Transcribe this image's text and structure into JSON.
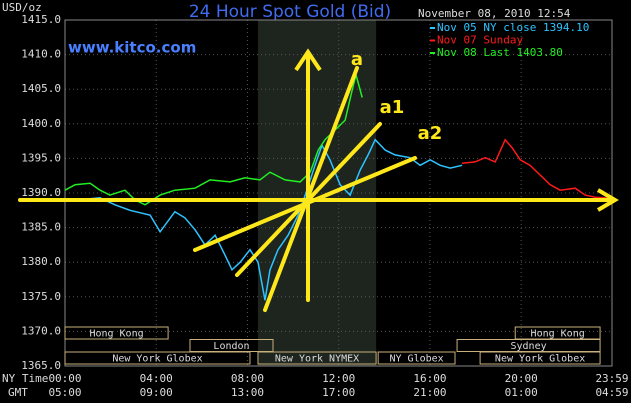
{
  "chart_data": {
    "type": "line",
    "title": "24 Hour Spot Gold (Bid)",
    "subtitle": "November 08, 2010 12:54",
    "source": "www.kitco.com",
    "y_label": "USD/oz",
    "x_label": "NY Time",
    "x2_label": "GMT",
    "xlim": [
      0,
      23.983
    ],
    "ylim": [
      1365,
      1415
    ],
    "xticks": [
      {
        "value": 0,
        "label": "00:00"
      },
      {
        "value": 4,
        "label": "04:00"
      },
      {
        "value": 8,
        "label": "08:00"
      },
      {
        "value": 12,
        "label": "12:00"
      },
      {
        "value": 16,
        "label": "16:00"
      },
      {
        "value": 20,
        "label": "20:00"
      },
      {
        "value": 23.983,
        "label": "23:59"
      }
    ],
    "x2ticks": [
      {
        "value": 0,
        "label": "05:00"
      },
      {
        "value": 4,
        "label": "09:00"
      },
      {
        "value": 8,
        "label": "13:00"
      },
      {
        "value": 12,
        "label": "17:00"
      },
      {
        "value": 16,
        "label": "21:00"
      },
      {
        "value": 20,
        "label": "01:00"
      },
      {
        "value": 23.983,
        "label": "04:59"
      }
    ],
    "yticks": [
      {
        "value": 1365,
        "label": "1365.0"
      },
      {
        "value": 1370,
        "label": "1370.0"
      },
      {
        "value": 1375,
        "label": "1375.0"
      },
      {
        "value": 1380,
        "label": "1380.0"
      },
      {
        "value": 1385,
        "label": "1385.0"
      },
      {
        "value": 1390,
        "label": "1390.0"
      },
      {
        "value": 1395,
        "label": "1395.0"
      },
      {
        "value": 1400,
        "label": "1400.0"
      },
      {
        "value": 1405,
        "label": "1405.0"
      },
      {
        "value": 1410,
        "label": "1410.0"
      },
      {
        "value": 1415,
        "label": "1415.0"
      }
    ],
    "grid": true,
    "legend": "top-right",
    "series": [
      {
        "name": "Nov 05 NY close 1394.10",
        "color": "#2ec4ff",
        "x": [
          0.88,
          1.54,
          2.19,
          2.85,
          3.73,
          4.17,
          4.82,
          5.26,
          5.7,
          6.14,
          6.58,
          7.02,
          7.32,
          7.68,
          8.11,
          8.46,
          8.77,
          8.99,
          9.34,
          9.78,
          10.22,
          10.53,
          10.96,
          11.27,
          11.62,
          12.06,
          12.5,
          12.94,
          13.29,
          13.6,
          14.04,
          14.47,
          15.13,
          15.57,
          16.01,
          16.45,
          16.89,
          17.41
        ],
        "values": [
          1389.1,
          1389.3,
          1388.3,
          1387.5,
          1386.8,
          1384.4,
          1387.3,
          1386.4,
          1384.7,
          1382.5,
          1383.9,
          1381.0,
          1378.9,
          1380.0,
          1381.8,
          1380.0,
          1374.5,
          1378.9,
          1381.8,
          1383.9,
          1386.8,
          1389.7,
          1394.0,
          1396.9,
          1394.8,
          1391.2,
          1389.7,
          1393.3,
          1395.5,
          1397.7,
          1396.2,
          1395.5,
          1395.1,
          1394.0,
          1394.8,
          1394.0,
          1393.6,
          1394.0
        ]
      },
      {
        "name": "Nov 07 Sunday",
        "color": "#ff1a1a",
        "x": [
          17.41,
          17.98,
          18.42,
          18.86,
          19.3,
          19.61,
          19.96,
          20.39,
          20.83,
          21.27,
          21.71,
          22.37,
          22.81,
          23.25,
          23.68,
          23.98
        ],
        "values": [
          1394.3,
          1394.5,
          1395.1,
          1394.5,
          1397.7,
          1396.5,
          1394.8,
          1394.0,
          1392.6,
          1391.2,
          1390.4,
          1390.7,
          1389.7,
          1389.4,
          1389.3,
          1389.0
        ]
      },
      {
        "name": "Nov 08 Last 1403.80",
        "color": "#22ee22",
        "x": [
          0,
          0.44,
          1.1,
          1.54,
          1.97,
          2.63,
          3.07,
          3.51,
          4.17,
          4.82,
          5.7,
          6.36,
          7.24,
          7.89,
          8.55,
          8.99,
          9.65,
          10.31,
          10.75,
          11.1,
          11.4,
          11.84,
          12.28,
          12.59,
          12.76,
          13.03
        ],
        "values": [
          1390.4,
          1391.2,
          1391.4,
          1390.4,
          1389.7,
          1390.4,
          1389.0,
          1388.3,
          1389.7,
          1390.4,
          1390.7,
          1391.9,
          1391.6,
          1392.2,
          1391.9,
          1393.0,
          1391.9,
          1391.6,
          1393.0,
          1396.2,
          1397.7,
          1399.1,
          1400.5,
          1404.9,
          1407.1,
          1403.8
        ]
      }
    ],
    "sessions": [
      [
        {
          "name": "Hong Kong",
          "start": 0,
          "end": 4.52
        },
        {
          "name": "Hong Kong",
          "start": 19.74,
          "end": 23.46
        }
      ],
      [
        {
          "name": "London",
          "start": 5.48,
          "end": 9.12
        },
        {
          "name": "Sydney",
          "start": 17.19,
          "end": 23.46
        }
      ],
      [
        {
          "name": "New York Globex",
          "start": 0,
          "end": 8.11
        },
        {
          "name": "New York NYMEX",
          "start": 8.46,
          "end": 13.64,
          "highlight": true
        },
        {
          "name": "NY Globex",
          "start": 13.73,
          "end": 17.1
        },
        {
          "name": "New York Globex",
          "start": 18.2,
          "end": 23.46
        }
      ]
    ],
    "annotations": [
      {
        "text": "a"
      },
      {
        "text": "a1"
      },
      {
        "text": "a2"
      }
    ],
    "annotation_color": "#ffe81a"
  }
}
